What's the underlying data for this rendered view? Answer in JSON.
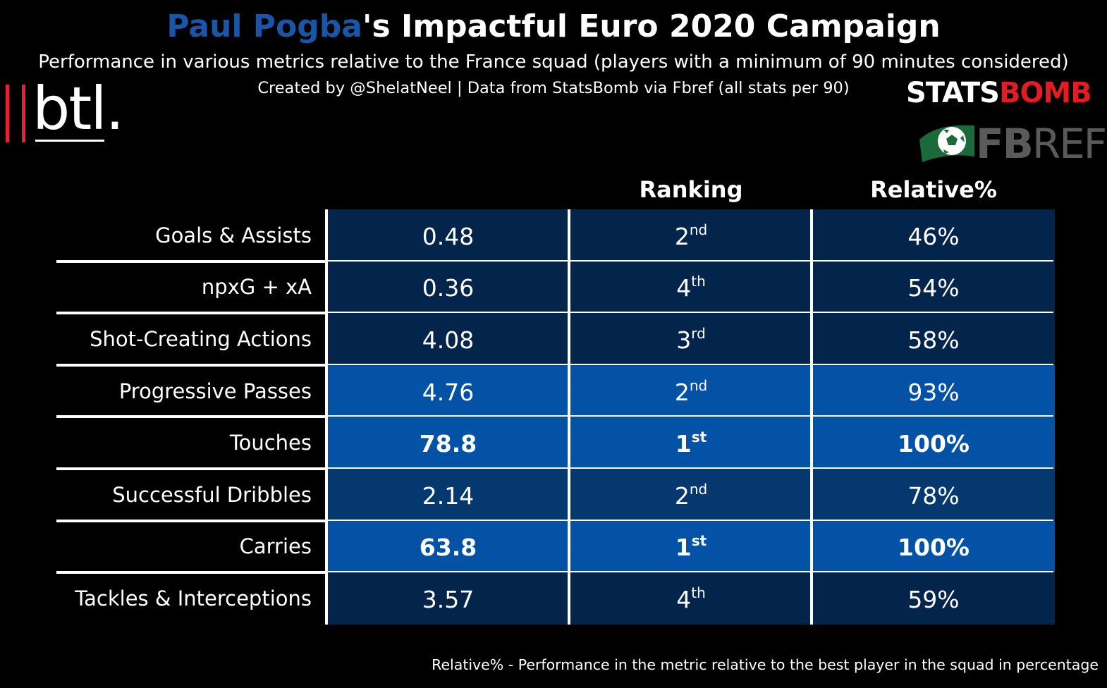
{
  "header": {
    "title_player": "Paul Pogba",
    "title_rest": "'s Impactful Euro 2020 Campaign",
    "subtitle": "Performance in various metrics relative to the France squad (players with a minimum of 90 minutes considered)",
    "credit": "Created by @ShelatNeel | Data from StatsBomb via Fbref (all stats per 90)"
  },
  "logos": {
    "btl": "btl.",
    "statsbomb_a": "STATS",
    "statsbomb_b": "BOMB",
    "fbref_a": "FB",
    "fbref_b": "REF"
  },
  "colors": {
    "background": "#000000",
    "player_title": "#1a56a8",
    "dark_cell": "#03244b",
    "mid_cell": "#05386f",
    "bright_cell": "#0452a6",
    "grid": "#ffffff"
  },
  "chart_data": {
    "type": "table",
    "title": "Paul Pogba's Impactful Euro 2020 Campaign",
    "columns": [
      "",
      "",
      "Ranking",
      "Relative%"
    ],
    "rows": [
      {
        "metric": "Goals & Assists",
        "value": "0.48",
        "rank_num": "2",
        "rank_suffix": "nd",
        "relative": "46%",
        "relative_value": 46,
        "bold": false
      },
      {
        "metric": "npxG + xA",
        "value": "0.36",
        "rank_num": "4",
        "rank_suffix": "th",
        "relative": "54%",
        "relative_value": 54,
        "bold": false
      },
      {
        "metric": "Shot-Creating Actions",
        "value": "4.08",
        "rank_num": "3",
        "rank_suffix": "rd",
        "relative": "58%",
        "relative_value": 58,
        "bold": false
      },
      {
        "metric": "Progressive Passes",
        "value": "4.76",
        "rank_num": "2",
        "rank_suffix": "nd",
        "relative": "93%",
        "relative_value": 93,
        "bold": false
      },
      {
        "metric": "Touches",
        "value": "78.8",
        "rank_num": "1",
        "rank_suffix": "st",
        "relative": "100%",
        "relative_value": 100,
        "bold": true
      },
      {
        "metric": "Successful Dribbles",
        "value": "2.14",
        "rank_num": "2",
        "rank_suffix": "nd",
        "relative": "78%",
        "relative_value": 78,
        "bold": false
      },
      {
        "metric": "Carries",
        "value": "63.8",
        "rank_num": "1",
        "rank_suffix": "st",
        "relative": "100%",
        "relative_value": 100,
        "bold": true
      },
      {
        "metric": "Tackles & Interceptions",
        "value": "3.57",
        "rank_num": "4",
        "rank_suffix": "th",
        "relative": "59%",
        "relative_value": 59,
        "bold": false
      }
    ]
  },
  "footnote": "Relative% - Performance in the metric relative to the best player in the squad in percentage"
}
